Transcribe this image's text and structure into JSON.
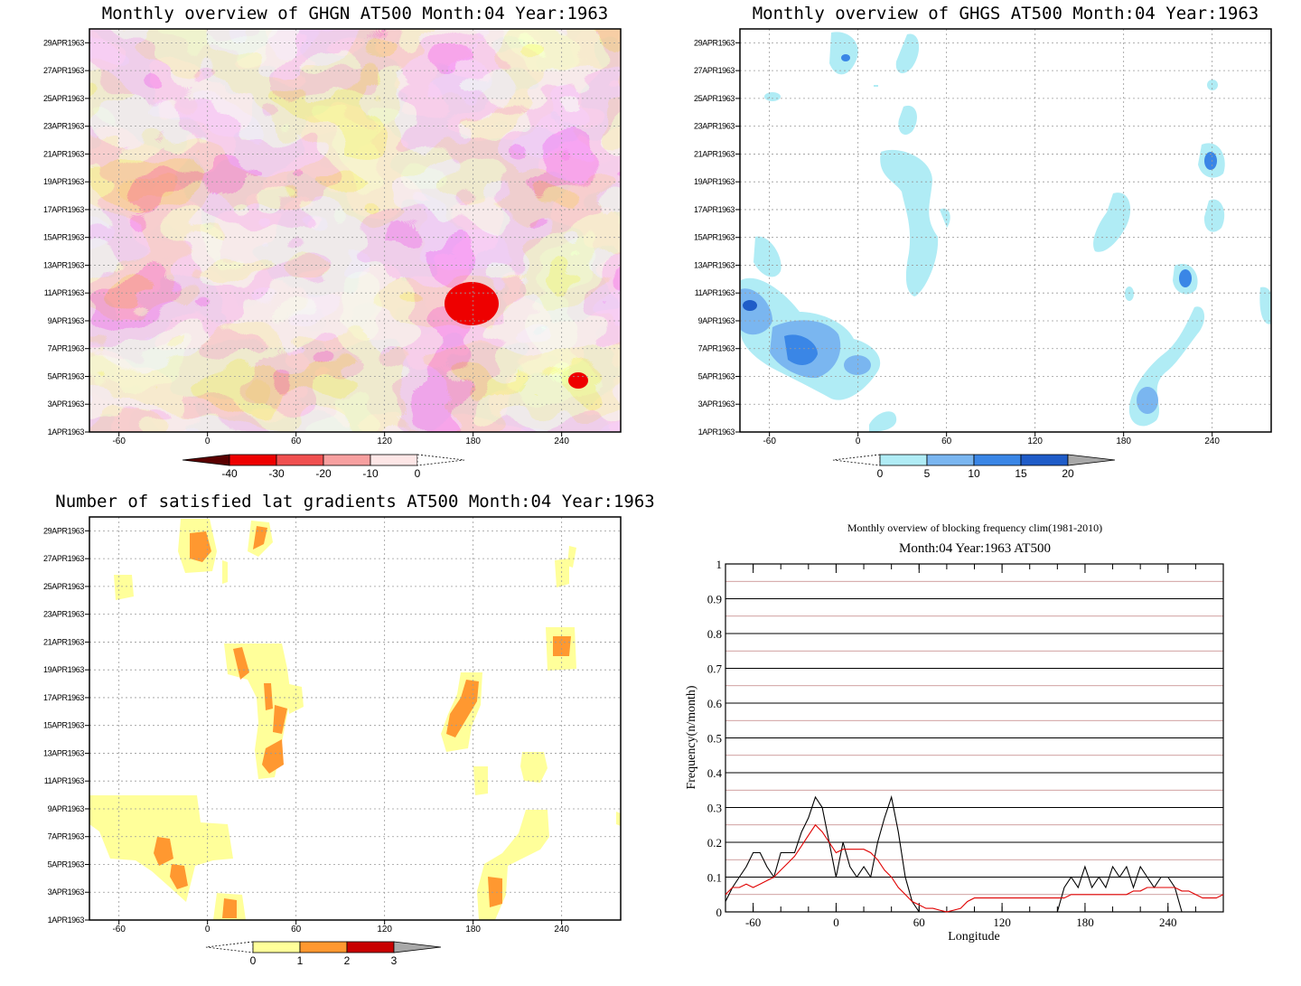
{
  "chart_data": [
    {
      "type": "heatmap",
      "title": "Monthly overview of GHGN AT500 Month:04 Year:1963",
      "y_tick_labels": [
        "1APR1963",
        "3APR1963",
        "5APR1963",
        "7APR1963",
        "9APR1963",
        "11APR1963",
        "13APR1963",
        "15APR1963",
        "17APR1963",
        "19APR1963",
        "21APR1963",
        "23APR1963",
        "25APR1963",
        "27APR1963",
        "29APR1963"
      ],
      "x_ticks": [
        -60,
        0,
        60,
        120,
        180,
        240
      ],
      "xlim": [
        -80,
        280
      ],
      "ylim": [
        1,
        30
      ],
      "grid": true,
      "colorbar": {
        "levels": [
          "-40",
          "-30",
          "-20",
          "-10",
          "0"
        ],
        "colors": [
          "#5a0000",
          "#ee0000",
          "#f05050",
          "#f7a0a0",
          "#fde6e6"
        ],
        "extend": "both"
      }
    },
    {
      "type": "heatmap",
      "title": "Monthly overview of GHGS AT500 Month:04 Year:1963",
      "y_tick_labels": [
        "1APR1963",
        "3APR1963",
        "5APR1963",
        "7APR1963",
        "9APR1963",
        "11APR1963",
        "13APR1963",
        "15APR1963",
        "17APR1963",
        "19APR1963",
        "21APR1963",
        "23APR1963",
        "25APR1963",
        "27APR1963",
        "29APR1963"
      ],
      "x_ticks": [
        -60,
        0,
        60,
        120,
        180,
        240
      ],
      "xlim": [
        -80,
        280
      ],
      "ylim": [
        1,
        30
      ],
      "grid": true,
      "colorbar": {
        "levels": [
          "0",
          "5",
          "10",
          "15",
          "20"
        ],
        "colors": [
          "#b0ecf5",
          "#7ab6f0",
          "#3a86e6",
          "#1f5cc8",
          "#a8a8a8"
        ],
        "extend": "both"
      }
    },
    {
      "type": "heatmap",
      "title": "Number of satisfied lat gradients AT500 Month:04 Year:1963",
      "y_tick_labels": [
        "1APR1963",
        "3APR1963",
        "5APR1963",
        "7APR1963",
        "9APR1963",
        "11APR1963",
        "13APR1963",
        "15APR1963",
        "17APR1963",
        "19APR1963",
        "21APR1963",
        "23APR1963",
        "25APR1963",
        "27APR1963",
        "29APR1963"
      ],
      "x_ticks": [
        -60,
        0,
        60,
        120,
        180,
        240
      ],
      "xlim": [
        -80,
        280
      ],
      "ylim": [
        1,
        30
      ],
      "grid": true,
      "colorbar": {
        "levels": [
          "0",
          "1",
          "2",
          "3"
        ],
        "colors": [
          "#ffff9a",
          "#ff9830",
          "#c80000",
          "#a8a8a8"
        ],
        "extend": "both"
      }
    },
    {
      "type": "line",
      "title": "Monthly overview of blocking frequency clim(1981-2010)",
      "subtitle": "Month:04 Year:1963  AT500",
      "xlabel": "Longitude",
      "ylabel": "Frequency(n/month)",
      "xlim": [
        -80,
        280
      ],
      "ylim": [
        0,
        1
      ],
      "x_ticks": [
        -60,
        0,
        60,
        120,
        180,
        240
      ],
      "y_ticks": [
        0,
        0.1,
        0.2,
        0.3,
        0.4,
        0.5,
        0.6,
        0.7,
        0.8,
        0.9,
        1
      ],
      "y_tick_labels": [
        "0",
        "0.1",
        "0.2",
        "0.3",
        "0.4",
        "0.5",
        "0.6",
        "0.7",
        "0.8",
        "0.9",
        "1"
      ],
      "x": [
        -80,
        -75,
        -70,
        -65,
        -60,
        -55,
        -50,
        -45,
        -40,
        -35,
        -30,
        -25,
        -20,
        -15,
        -10,
        -5,
        0,
        5,
        10,
        15,
        20,
        25,
        30,
        35,
        40,
        45,
        50,
        55,
        60,
        65,
        70,
        75,
        80,
        85,
        90,
        95,
        100,
        105,
        110,
        115,
        120,
        125,
        130,
        135,
        140,
        145,
        150,
        155,
        160,
        165,
        170,
        175,
        180,
        185,
        190,
        195,
        200,
        205,
        210,
        215,
        220,
        225,
        230,
        235,
        240,
        245,
        250,
        255,
        260,
        265,
        270,
        275,
        280
      ],
      "series": [
        {
          "color": "#000000",
          "values": [
            0.03,
            0.07,
            0.1,
            0.13,
            0.17,
            0.17,
            0.13,
            0.1,
            0.17,
            0.17,
            0.17,
            0.23,
            0.27,
            0.33,
            0.3,
            0.2,
            0.1,
            0.2,
            0.13,
            0.1,
            0.13,
            0.1,
            0.2,
            0.27,
            0.33,
            0.23,
            0.1,
            0.03,
            0,
            0,
            0,
            0,
            0,
            0,
            0,
            0,
            0,
            0,
            0,
            0,
            0,
            0,
            0,
            0,
            0,
            0,
            0,
            0,
            0,
            0.07,
            0.1,
            0.07,
            0.13,
            0.07,
            0.1,
            0.07,
            0.13,
            0.1,
            0.13,
            0.07,
            0.13,
            0.1,
            0.07,
            0.1,
            0.1,
            0.07,
            0,
            0,
            0,
            0,
            0,
            0,
            0
          ]
        },
        {
          "color": "#e00000",
          "values": [
            0.05,
            0.07,
            0.07,
            0.08,
            0.07,
            0.08,
            0.09,
            0.1,
            0.12,
            0.14,
            0.16,
            0.19,
            0.22,
            0.25,
            0.23,
            0.2,
            0.17,
            0.18,
            0.18,
            0.18,
            0.18,
            0.17,
            0.15,
            0.12,
            0.1,
            0.07,
            0.05,
            0.03,
            0.02,
            0.01,
            0.01,
            0.005,
            0,
            0.005,
            0.01,
            0.03,
            0.04,
            0.04,
            0.04,
            0.04,
            0.04,
            0.04,
            0.04,
            0.04,
            0.04,
            0.04,
            0.04,
            0.04,
            0.04,
            0.04,
            0.05,
            0.05,
            0.05,
            0.05,
            0.05,
            0.05,
            0.05,
            0.05,
            0.05,
            0.06,
            0.06,
            0.07,
            0.07,
            0.07,
            0.07,
            0.07,
            0.06,
            0.06,
            0.05,
            0.04,
            0.04,
            0.04,
            0.05
          ]
        }
      ]
    }
  ]
}
